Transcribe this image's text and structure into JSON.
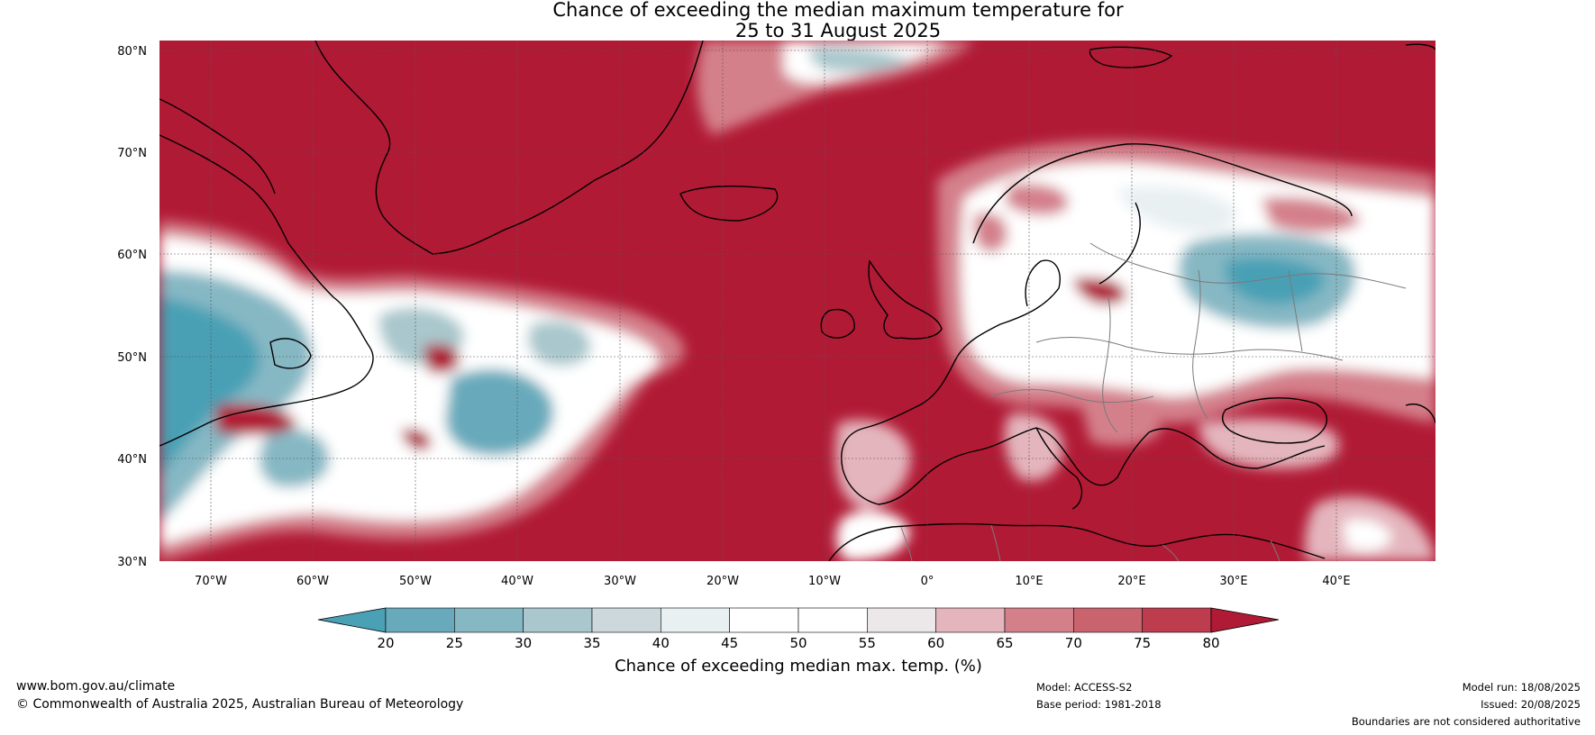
{
  "title": {
    "line1": "Chance of exceeding the median maximum temperature for",
    "line2": "25 to 31 August 2025"
  },
  "map": {
    "lat_ticks": [
      "80°N",
      "70°N",
      "60°N",
      "50°N",
      "40°N",
      "30°N"
    ],
    "lon_ticks": [
      "70°W",
      "60°W",
      "50°W",
      "40°W",
      "30°W",
      "20°W",
      "10°W",
      "0°",
      "10°E",
      "20°E",
      "30°E",
      "40°E"
    ],
    "colors": {
      "ocean_high": "#b11a35",
      "land_border": "#000000",
      "country_border": "#7a7a7a"
    }
  },
  "colorbar": {
    "ticks": [
      "20",
      "25",
      "30",
      "35",
      "40",
      "45",
      "50",
      "55",
      "60",
      "65",
      "70",
      "75",
      "80"
    ],
    "colors": [
      "#4aa0b5",
      "#68aabb",
      "#86b8c4",
      "#a9c7cc",
      "#ccd8dc",
      "#e9f0f2",
      "#ffffff",
      "#ffffff",
      "#ece8e9",
      "#e4b5bd",
      "#d4808b",
      "#c9646f",
      "#bd3d4f",
      "#b11a35"
    ],
    "label": "Chance of exceeding median max. temp. (%)"
  },
  "footer": {
    "url": "www.bom.gov.au/climate",
    "copyright": "© Commonwealth of Australia 2025, Australian Bureau of Meteorology",
    "model": "Model: ACCESS-S2",
    "base_period": "Base period: 1981-2018",
    "model_run": "Model run: 18/08/2025",
    "issued": "Issued: 20/08/2025",
    "disclaimer": "Boundaries are not considered authoritative"
  }
}
